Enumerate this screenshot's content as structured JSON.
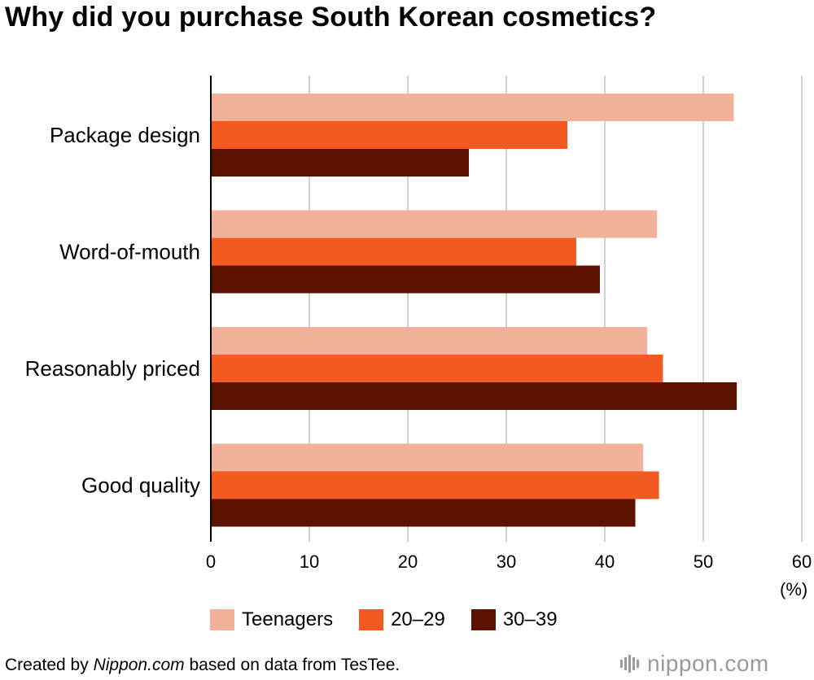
{
  "chart_data": {
    "type": "bar",
    "orientation": "horizontal",
    "title": "Why did you purchase South Korean cosmetics?",
    "categories": [
      "Package design",
      "Word-of-mouth",
      "Reasonably priced",
      "Good quality"
    ],
    "series": [
      {
        "name": "Teenagers",
        "color": "#f2b29a",
        "values": [
          53.1,
          45.3,
          44.3,
          43.9
        ]
      },
      {
        "name": "20–29",
        "color": "#f25a21",
        "values": [
          36.2,
          37.1,
          45.9,
          45.5
        ]
      },
      {
        "name": "30–39",
        "color": "#5b1300",
        "values": [
          26.2,
          39.5,
          53.4,
          43.1
        ]
      }
    ],
    "xlim": [
      0,
      60
    ],
    "xticks": [
      "0",
      "10",
      "20",
      "30",
      "40",
      "50",
      "60"
    ],
    "xunit": "(%)",
    "grid": "vertical",
    "legend_position": "bottom"
  },
  "footer": {
    "source_prefix": "Created by ",
    "source_site": "Nippon.com",
    "source_suffix": " based on data from TesTee.",
    "brand": "nippon.com"
  }
}
